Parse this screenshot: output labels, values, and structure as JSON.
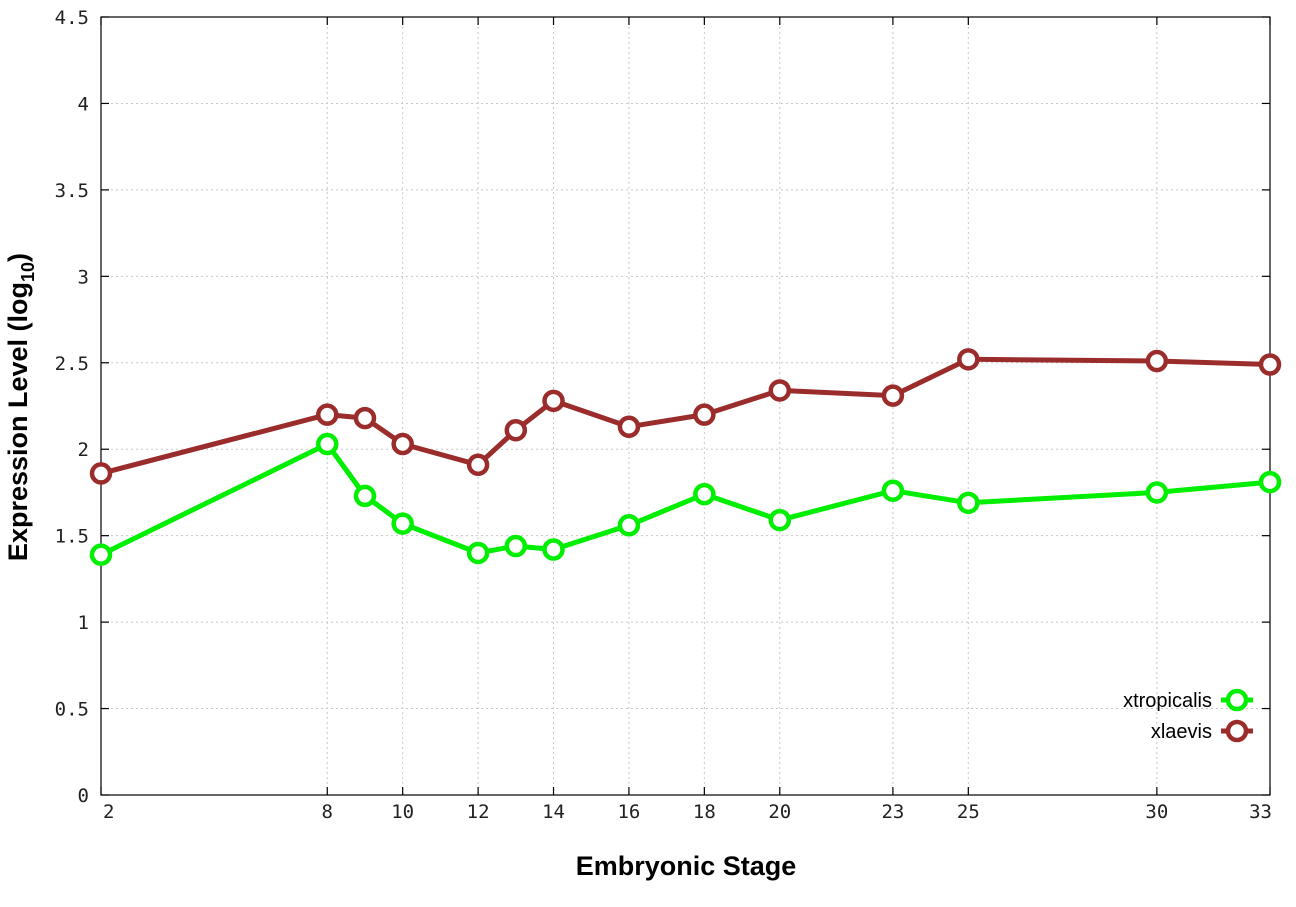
{
  "chart_data": {
    "type": "line",
    "xlabel": "Embryonic Stage",
    "ylabel": "Expression Level (log",
    "ylabel_subscript": "10",
    "ylabel_close": ")",
    "x_ticks": [
      2,
      8,
      10,
      12,
      14,
      16,
      18,
      20,
      23,
      25,
      30,
      33
    ],
    "x_tick_labels": [
      "2",
      "8",
      "10",
      "12",
      "14",
      "16",
      "18",
      "20",
      "23",
      "25",
      "30",
      "33"
    ],
    "y_ticks": [
      0,
      0.5,
      1,
      1.5,
      2,
      2.5,
      3,
      3.5,
      4,
      4.5
    ],
    "y_tick_labels": [
      "0",
      "0.5",
      "1",
      "1.5",
      "2",
      "2.5",
      "3",
      "3.5",
      "4",
      "4.5"
    ],
    "xlim": [
      2,
      33
    ],
    "ylim": [
      0,
      4.5
    ],
    "grid": true,
    "legend_position": "bottom-right",
    "series": [
      {
        "name": "xtropicalis",
        "color": "#00ee00",
        "x": [
          2,
          8,
          9,
          10,
          12,
          13,
          14,
          16,
          18,
          20,
          23,
          25,
          30,
          33
        ],
        "values": [
          1.39,
          2.03,
          1.73,
          1.57,
          1.4,
          1.44,
          1.42,
          1.56,
          1.74,
          1.59,
          1.76,
          1.69,
          1.75,
          1.81
        ]
      },
      {
        "name": "xlaevis",
        "color": "#9b2c2c",
        "x": [
          2,
          8,
          9,
          10,
          12,
          13,
          14,
          16,
          18,
          20,
          23,
          25,
          30,
          33
        ],
        "values": [
          1.86,
          2.2,
          2.18,
          2.03,
          1.91,
          2.11,
          2.28,
          2.13,
          2.2,
          2.34,
          2.31,
          2.52,
          2.51,
          2.49
        ]
      }
    ]
  }
}
